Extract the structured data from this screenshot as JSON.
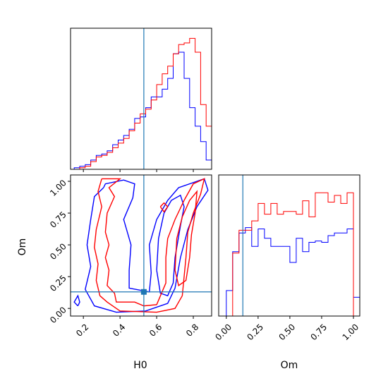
{
  "chart_data": [
    {
      "type": "histogram",
      "panel": "H0 marginal",
      "xlim": [
        0.13,
        0.9
      ],
      "bin_edges": [
        0.15,
        0.18,
        0.21,
        0.24,
        0.27,
        0.3,
        0.33,
        0.36,
        0.39,
        0.42,
        0.45,
        0.48,
        0.51,
        0.54,
        0.57,
        0.6,
        0.63,
        0.66,
        0.69,
        0.72,
        0.75,
        0.78,
        0.81,
        0.84,
        0.87,
        0.9
      ],
      "reference_line": 0.53,
      "series": [
        {
          "color": "#0000ff",
          "values": [
            1,
            2,
            3,
            6,
            9,
            10,
            12,
            16,
            19,
            22,
            26,
            33,
            34,
            40,
            47,
            47,
            52,
            59,
            75,
            76,
            59,
            40,
            28,
            18,
            6
          ]
        },
        {
          "color": "#ff0000",
          "values": [
            0,
            1,
            2,
            5,
            8,
            9,
            11,
            14,
            17,
            20,
            25,
            30,
            36,
            39,
            45,
            55,
            62,
            67,
            75,
            81,
            82,
            85,
            76,
            42,
            28
          ]
        }
      ]
    },
    {
      "type": "contour",
      "panel": "H0 vs Om",
      "xlabel": "H0",
      "ylabel": "Om",
      "xlim": [
        0.13,
        0.9
      ],
      "ylim": [
        -0.06,
        1.05
      ],
      "xticks": [
        "0.2",
        "0.4",
        "0.6",
        "0.8"
      ],
      "yticks": [
        "0.00",
        "0.25",
        "0.50",
        "0.75",
        "1.00"
      ],
      "reference_point": {
        "H0": 0.53,
        "Om": 0.13
      },
      "series": [
        {
          "color": "#0000ff",
          "contours": [
            [
              [
                0.31,
                0.95
              ],
              [
                0.32,
                0.98
              ],
              [
                0.42,
                1.01
              ],
              [
                0.48,
                0.98
              ],
              [
                0.47,
                0.87
              ],
              [
                0.42,
                0.7
              ],
              [
                0.46,
                0.5
              ],
              [
                0.45,
                0.3
              ],
              [
                0.45,
                0.16
              ],
              [
                0.56,
                0.13
              ],
              [
                0.57,
                0.28
              ],
              [
                0.56,
                0.5
              ],
              [
                0.6,
                0.7
              ],
              [
                0.66,
                0.85
              ],
              [
                0.72,
                0.95
              ],
              [
                0.86,
                1.02
              ],
              [
                0.88,
                0.93
              ],
              [
                0.82,
                0.8
              ],
              [
                0.77,
                0.62
              ],
              [
                0.73,
                0.4
              ],
              [
                0.7,
                0.16
              ],
              [
                0.66,
                0.04
              ],
              [
                0.54,
                -0.02
              ],
              [
                0.38,
                -0.03
              ],
              [
                0.26,
                0.02
              ],
              [
                0.21,
                0.15
              ],
              [
                0.24,
                0.33
              ],
              [
                0.22,
                0.5
              ],
              [
                0.24,
                0.7
              ],
              [
                0.26,
                0.88
              ],
              [
                0.31,
                0.95
              ]
            ],
            [
              [
                0.6,
                0.3
              ],
              [
                0.61,
                0.55
              ],
              [
                0.64,
                0.75
              ],
              [
                0.68,
                0.85
              ],
              [
                0.73,
                0.89
              ],
              [
                0.75,
                0.8
              ],
              [
                0.73,
                0.65
              ],
              [
                0.7,
                0.4
              ],
              [
                0.69,
                0.2
              ],
              [
                0.66,
                0.1
              ],
              [
                0.62,
                0.12
              ],
              [
                0.6,
                0.3
              ]
            ],
            [
              [
                0.17,
                0.02
              ],
              [
                0.15,
                0.05
              ],
              [
                0.17,
                0.1
              ],
              [
                0.18,
                0.05
              ],
              [
                0.17,
                0.02
              ]
            ]
          ]
        },
        {
          "color": "#ff0000",
          "contours": [
            [
              [
                0.3,
                1.02
              ],
              [
                0.4,
                1.02
              ],
              [
                0.34,
                0.95
              ],
              [
                0.37,
                0.88
              ],
              [
                0.33,
                0.75
              ],
              [
                0.32,
                0.6
              ],
              [
                0.34,
                0.5
              ],
              [
                0.32,
                0.4
              ],
              [
                0.34,
                0.3
              ],
              [
                0.33,
                0.18
              ],
              [
                0.37,
                0.12
              ],
              [
                0.38,
                0.05
              ],
              [
                0.48,
                0.05
              ],
              [
                0.53,
                0.02
              ],
              [
                0.6,
                0.03
              ],
              [
                0.65,
                0.2
              ],
              [
                0.65,
                0.4
              ],
              [
                0.66,
                0.55
              ],
              [
                0.7,
                0.7
              ],
              [
                0.75,
                0.85
              ],
              [
                0.8,
                0.98
              ],
              [
                0.86,
                1.02
              ],
              [
                0.84,
                0.9
              ],
              [
                0.8,
                0.75
              ],
              [
                0.77,
                0.6
              ],
              [
                0.76,
                0.4
              ],
              [
                0.75,
                0.25
              ],
              [
                0.74,
                0.1
              ],
              [
                0.7,
                0.0
              ],
              [
                0.6,
                -0.03
              ],
              [
                0.4,
                -0.02
              ],
              [
                0.33,
                0.05
              ],
              [
                0.29,
                0.1
              ],
              [
                0.27,
                0.22
              ],
              [
                0.28,
                0.35
              ],
              [
                0.26,
                0.48
              ],
              [
                0.27,
                0.62
              ],
              [
                0.3,
                0.8
              ],
              [
                0.28,
                0.92
              ],
              [
                0.3,
                1.02
              ]
            ],
            [
              [
                0.7,
                0.3
              ],
              [
                0.71,
                0.55
              ],
              [
                0.74,
                0.72
              ],
              [
                0.78,
                0.85
              ],
              [
                0.82,
                0.92
              ],
              [
                0.81,
                0.75
              ],
              [
                0.79,
                0.58
              ],
              [
                0.78,
                0.4
              ],
              [
                0.76,
                0.22
              ],
              [
                0.72,
                0.18
              ],
              [
                0.7,
                0.3
              ]
            ],
            [
              [
                0.62,
                0.8
              ],
              [
                0.64,
                0.83
              ],
              [
                0.66,
                0.8
              ],
              [
                0.64,
                0.76
              ],
              [
                0.62,
                0.8
              ]
            ]
          ]
        }
      ]
    },
    {
      "type": "histogram",
      "panel": "Om marginal",
      "xlabel": "Om",
      "xlim": [
        -0.06,
        1.05
      ],
      "xticks": [
        "0.00",
        "0.25",
        "0.50",
        "0.75",
        "1.00"
      ],
      "bin_edges": [
        -0.05,
        0.0,
        0.05,
        0.1,
        0.15,
        0.2,
        0.25,
        0.3,
        0.35,
        0.4,
        0.45,
        0.5,
        0.55,
        0.6,
        0.65,
        0.7,
        0.75,
        0.8,
        0.85,
        0.9,
        0.95,
        1.0,
        1.05
      ],
      "reference_line": 0.13,
      "series": [
        {
          "color": "#0000ff",
          "values": [
            0,
            19,
            48,
            62,
            66,
            52,
            65,
            58,
            52,
            52,
            52,
            40,
            58,
            48,
            55,
            56,
            55,
            60,
            62,
            62,
            65,
            14
          ]
        },
        {
          "color": "#ff0000",
          "values": [
            0,
            0,
            47,
            64,
            64,
            71,
            84,
            76,
            84,
            76,
            78,
            78,
            76,
            86,
            74,
            92,
            92,
            85,
            90,
            84,
            92,
            0
          ]
        }
      ]
    }
  ]
}
